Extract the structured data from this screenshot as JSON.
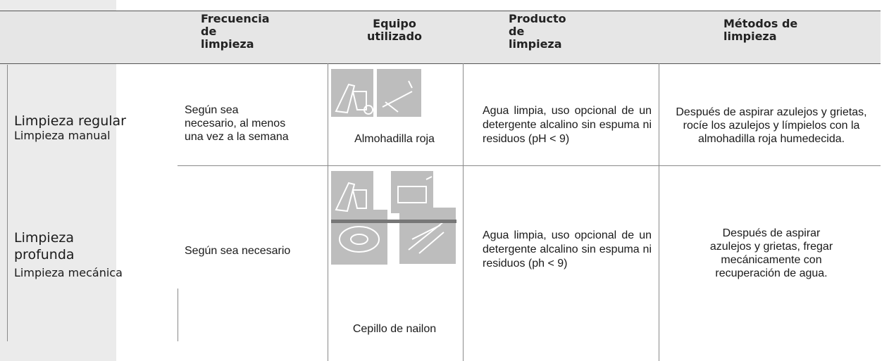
{
  "table": {
    "headers": [
      "Frecuencia\nde\nlimpieza",
      "Equipo\nutilizado",
      "Producto\nde\nlimpieza",
      "Métodos de\nlimpieza"
    ],
    "rows": [
      {
        "title": "Limpieza regular",
        "subtitle": "Limpieza manual",
        "frequency": "Según sea\nnecesario, al menos\nuna vez a la semana",
        "equipment": "Almohadilla roja",
        "product": "Agua limpia, uso opcional de un detergente alcalino sin espuma ni residuos (pH < 9)",
        "method": "Después de aspirar azulejos y grietas, rocíe los azulejos y límpielos con la almohadilla roja humedecida."
      },
      {
        "title": "Limpieza\nprofunda",
        "subtitle": "Limpieza mecánica",
        "frequency": "Según sea necesario",
        "equipment": "Cepillo de nailon",
        "product": "Agua limpia, uso opcional de un detergente alcalino sin espuma ni residuos (ph < 9)",
        "method": "Después de aspirar\nazulejos y grietas, fregar\nmecánicamente con\nrecuperación de agua."
      }
    ]
  }
}
